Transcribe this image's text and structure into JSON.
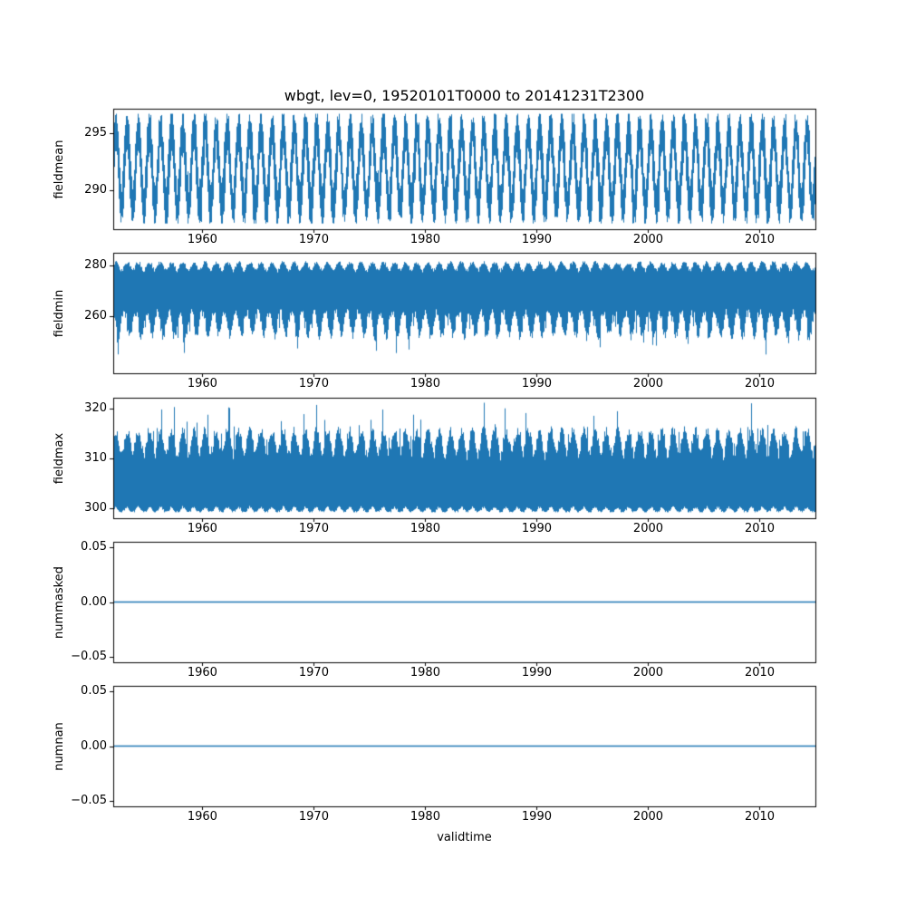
{
  "figure": {
    "title": "wbgt, lev=0, 19520101T0000 to 20141231T2300",
    "xlabel": "validtime",
    "x_ticks": [
      "1960",
      "1970",
      "1980",
      "1990",
      "2000",
      "2010"
    ],
    "x_tick_years": [
      1960,
      1970,
      1980,
      1990,
      2000,
      2010
    ],
    "xlim": [
      1952,
      2015
    ],
    "line_color": "#1f77b4",
    "axis_color": "#000000",
    "background": "#ffffff"
  },
  "chart_data": [
    {
      "type": "line",
      "name": "fieldmean",
      "ylabel": "fieldmean",
      "ylim": [
        286.6,
        297.14
      ],
      "yticks": [
        {
          "value": 295,
          "label": "295"
        },
        {
          "value": 290,
          "label": "290"
        }
      ],
      "x_range_years": [
        1952,
        2015
      ],
      "summary": {
        "approx_min": 287.1,
        "approx_max": 296.7,
        "annual_period_years": 1,
        "cycles_shown": 63
      },
      "model": {
        "kind": "center_band",
        "center": 291.9,
        "amp": 3.3,
        "halfwidth": 1.0,
        "noise": 0.7,
        "spike_prob": 0.05,
        "spike": 0.9,
        "min_clip": 287.1,
        "max_clip": 296.7
      }
    },
    {
      "type": "line",
      "name": "fieldmin",
      "ylabel": "fieldmin",
      "ylim": [
        237.5,
        285.0
      ],
      "yticks": [
        {
          "value": 280,
          "label": "280"
        },
        {
          "value": 260,
          "label": "260"
        }
      ],
      "x_range_years": [
        1952,
        2015
      ],
      "summary": {
        "approx_min": 241,
        "approx_max": 282,
        "top_envelope": 279,
        "seasonal_dips_to": 250
      },
      "model": {
        "kind": "envelope",
        "top_base": 278.8,
        "top_amp": 1.6,
        "top_noise": 1.4,
        "bottom_base": 263.0,
        "dip_amp": 9.0,
        "dip_phase": 0.25,
        "dip_pow": 2,
        "bottom_noise": 3.5,
        "spike_prob": 0.07,
        "spike": 8.0,
        "min_clip": 240.5,
        "max_clip": 282.5
      }
    },
    {
      "type": "line",
      "name": "fieldmax",
      "ylabel": "fieldmax",
      "ylim": [
        298.0,
        322.2
      ],
      "yticks": [
        {
          "value": 320,
          "label": "320"
        },
        {
          "value": 310,
          "label": "310"
        },
        {
          "value": 300,
          "label": "300"
        }
      ],
      "x_range_years": [
        1952,
        2015
      ],
      "summary": {
        "approx_min": 299.2,
        "approx_max": 321.2,
        "dense_band_low": 300.5,
        "dense_band_high": 315
      },
      "model": {
        "kind": "envelope_inv",
        "bottom_base": 300.5,
        "bottom_amp": 1.0,
        "bottom_noise": 0.6,
        "top_base": 312.0,
        "peak_amp": 2.5,
        "top_noise": 2.0,
        "spike_prob": 0.07,
        "spike": 6.0,
        "min_clip": 299.2,
        "max_clip": 321.2
      }
    },
    {
      "type": "line",
      "name": "nummasked",
      "ylabel": "nummasked",
      "ylim": [
        -0.055,
        0.055
      ],
      "yticks": [
        {
          "value": 0.05,
          "label": "0.05"
        },
        {
          "value": 0,
          "label": "0.00"
        },
        {
          "value": -0.05,
          "label": "−0.05"
        }
      ],
      "x_range_years": [
        1952,
        2015
      ],
      "summary": {
        "constant_value": 0
      },
      "model": {
        "kind": "flat",
        "value": 0
      }
    },
    {
      "type": "line",
      "name": "numnan",
      "ylabel": "numnan",
      "ylim": [
        -0.055,
        0.055
      ],
      "yticks": [
        {
          "value": 0.05,
          "label": "0.05"
        },
        {
          "value": 0,
          "label": "0.00"
        },
        {
          "value": -0.05,
          "label": "−0.05"
        }
      ],
      "x_range_years": [
        1952,
        2015
      ],
      "summary": {
        "constant_value": 0
      },
      "model": {
        "kind": "flat",
        "value": 0
      }
    }
  ]
}
